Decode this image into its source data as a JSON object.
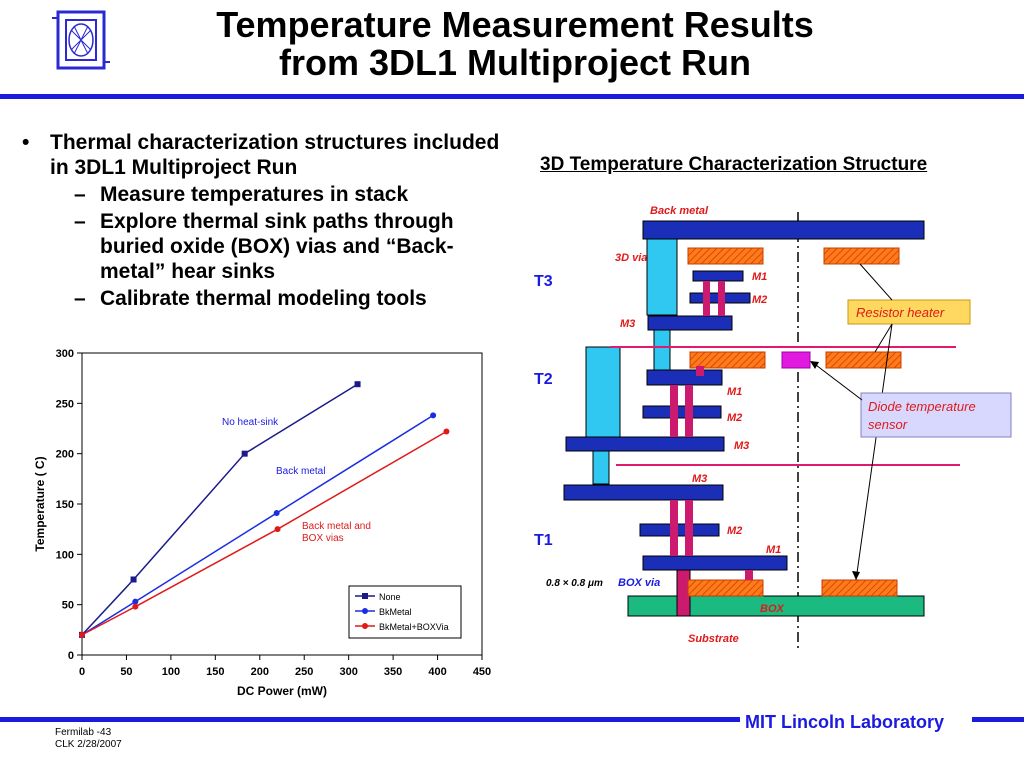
{
  "title": {
    "line1": "Temperature Measurement Results",
    "line2": "from 3DL1 Multiproject Run"
  },
  "bullets": {
    "main": "Thermal characterization structures included in 3DL1 Multiproject Run",
    "subs": [
      "Measure temperatures in stack",
      "Explore thermal sink paths through buried oxide (BOX) vias and “Back-metal” hear sinks",
      "Calibrate thermal modeling tools"
    ]
  },
  "colors": {
    "accent": "#1a1ae0",
    "none": "#1a1a8c",
    "bkmetal": "#1a2ee0",
    "bkmetal_box": "#e01a1a"
  },
  "chart_data": {
    "type": "line",
    "xlabel": "DC Power (mW)",
    "ylabel": "Temperature ( C)",
    "xlim": [
      0,
      450
    ],
    "ylim": [
      0,
      300
    ],
    "x_ticks": [
      0,
      50,
      100,
      150,
      200,
      250,
      300,
      350,
      400,
      450
    ],
    "y_ticks": [
      0,
      50,
      100,
      150,
      200,
      250,
      300
    ],
    "legend_position": "bottom-right",
    "grid": false,
    "series": [
      {
        "name": "None",
        "marker": "square",
        "color": "#1a1a8c",
        "x": [
          0,
          58,
          183,
          310
        ],
        "y": [
          20,
          75,
          200,
          269
        ]
      },
      {
        "name": "BkMetal",
        "marker": "circle",
        "color": "#1a2ee0",
        "x": [
          0,
          60,
          219,
          395
        ],
        "y": [
          20,
          53,
          141,
          238
        ]
      },
      {
        "name": "BkMetal+BOXVia",
        "marker": "circle",
        "color": "#e01a1a",
        "x": [
          0,
          60,
          220,
          410
        ],
        "y": [
          20,
          48,
          125,
          222
        ]
      }
    ],
    "annotations": [
      {
        "text": "No heat-sink",
        "color": "#1a1ae0"
      },
      {
        "text": "Back metal",
        "color": "#1a1ae0"
      },
      {
        "text": "Back metal and",
        "color": "#e01a1a"
      },
      {
        "text": "BOX vias",
        "color": "#e01a1a"
      }
    ]
  },
  "diagram": {
    "title": "3D Temperature Characterization Structure",
    "labels": {
      "back_metal": "Back metal",
      "via_3d": "3D via",
      "t3": "T3",
      "t2": "T2",
      "t1": "T1",
      "m1": "M1",
      "m2": "M2",
      "m3": "M3",
      "box_via_size": "0.8 × 0.8 μm",
      "box_via": "BOX via",
      "box": "BOX",
      "substrate": "Substrate",
      "resistor_heater": "Resistor heater",
      "diode_line1": "Diode temperature",
      "diode_line2": "sensor"
    }
  },
  "footer": {
    "lab": "MIT Lincoln Laboratory",
    "id_line1": "Fermilab -43",
    "id_line2": "CLK 2/28/2007"
  }
}
